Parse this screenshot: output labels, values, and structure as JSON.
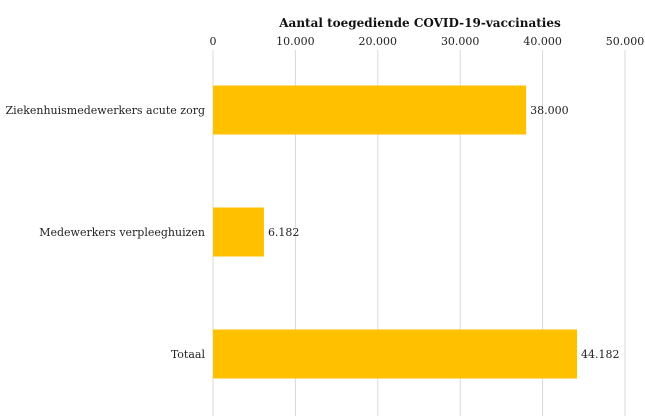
{
  "chart_data": {
    "type": "bar",
    "orientation": "horizontal",
    "title": "Aantal toegediende COVID-19-vaccinaties",
    "categories": [
      "Ziekenhuismedewerkers acute zorg",
      "Medewerkers verpleeghuizen",
      "Totaal"
    ],
    "values": [
      38000,
      6182,
      44182
    ],
    "data_labels": [
      "38.000",
      "6.182",
      "44.182"
    ],
    "xlim": [
      0,
      50000
    ],
    "x_ticks": [
      0,
      10000,
      20000,
      30000,
      40000,
      50000
    ],
    "x_tick_labels": [
      "0",
      "10.000",
      "20.000",
      "30.000",
      "40.000",
      "50.000"
    ],
    "x_axis_position": "top",
    "grid": true,
    "bar_color": "#FFC000",
    "grid_color": "#D9D9D9"
  }
}
